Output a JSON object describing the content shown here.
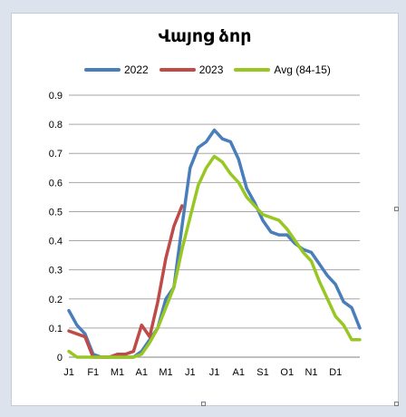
{
  "chart_data": {
    "type": "line",
    "title": "Վայոց ձոր",
    "xlabel": "",
    "ylabel": "",
    "ylim": [
      0,
      0.9
    ],
    "yticks": [
      "0",
      "0.1",
      "0.2",
      "0.3",
      "0.4",
      "0.5",
      "0.6",
      "0.7",
      "0.8",
      "0.9"
    ],
    "grid": true,
    "legend_position": "top",
    "x_index_range": [
      0,
      36
    ],
    "x_ticks": [
      {
        "label": "J1",
        "x": 0
      },
      {
        "label": "F1",
        "x": 3
      },
      {
        "label": "M1",
        "x": 6
      },
      {
        "label": "A1",
        "x": 9
      },
      {
        "label": "M1",
        "x": 12
      },
      {
        "label": "J1",
        "x": 15
      },
      {
        "label": "J1",
        "x": 18
      },
      {
        "label": "A1",
        "x": 21
      },
      {
        "label": "S1",
        "x": 24
      },
      {
        "label": "O1",
        "x": 27
      },
      {
        "label": "N1",
        "x": 30
      },
      {
        "label": "D1",
        "x": 33
      }
    ],
    "series": [
      {
        "name": "2022",
        "color": "#4a7ebb",
        "values": [
          0.16,
          0.11,
          0.08,
          0.01,
          0.0,
          0.0,
          0.0,
          0.0,
          0.0,
          0.02,
          0.06,
          0.1,
          0.2,
          0.24,
          0.45,
          0.65,
          0.72,
          0.74,
          0.78,
          0.75,
          0.74,
          0.68,
          0.58,
          0.53,
          0.47,
          0.43,
          0.42,
          0.42,
          0.39,
          0.37,
          0.36,
          0.32,
          0.28,
          0.25,
          0.19,
          0.17,
          0.1
        ]
      },
      {
        "name": "2023",
        "color": "#be4b48",
        "values": [
          0.09,
          0.08,
          0.07,
          0.0,
          0.0,
          0.0,
          0.01,
          0.01,
          0.02,
          0.11,
          0.07,
          0.19,
          0.34,
          0.45,
          0.52
        ]
      },
      {
        "name": "Avg (84-15)",
        "color": "#98c723",
        "values": [
          0.02,
          0.0,
          0.0,
          0.0,
          0.0,
          0.0,
          0.0,
          0.0,
          0.0,
          0.01,
          0.05,
          0.1,
          0.17,
          0.24,
          0.37,
          0.48,
          0.59,
          0.65,
          0.69,
          0.67,
          0.63,
          0.6,
          0.55,
          0.52,
          0.49,
          0.48,
          0.47,
          0.44,
          0.4,
          0.36,
          0.33,
          0.26,
          0.2,
          0.14,
          0.11,
          0.06,
          0.06
        ]
      }
    ]
  }
}
